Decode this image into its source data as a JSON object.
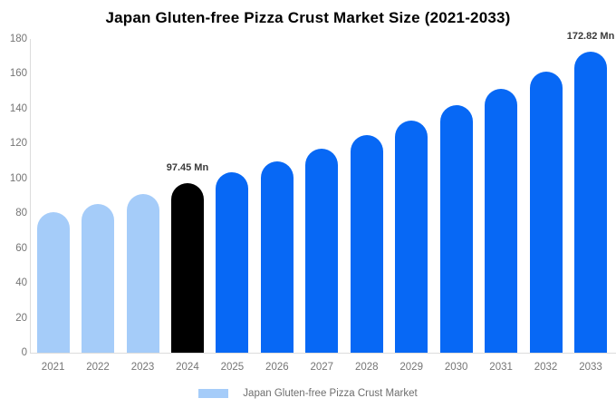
{
  "chart_data": {
    "type": "bar",
    "title": "Japan Gluten-free Pizza Crust Market Size (2021-2033)",
    "categories": [
      "2021",
      "2022",
      "2023",
      "2024",
      "2025",
      "2026",
      "2027",
      "2028",
      "2029",
      "2030",
      "2031",
      "2032",
      "2033"
    ],
    "values": [
      80.4,
      85.5,
      90.8,
      97.45,
      103.5,
      109.8,
      117.0,
      124.6,
      133.0,
      141.8,
      151.2,
      161.2,
      172.82
    ],
    "point_labels": [
      null,
      null,
      null,
      "97.45 Mn",
      null,
      null,
      null,
      null,
      null,
      null,
      null,
      null,
      "172.82 Mn"
    ],
    "bar_roles": [
      "historical",
      "historical",
      "historical",
      "highlight",
      "forecast",
      "forecast",
      "forecast",
      "forecast",
      "forecast",
      "forecast",
      "forecast",
      "forecast",
      "forecast"
    ],
    "xlabel": "",
    "ylabel": "",
    "ylim": [
      0,
      180
    ],
    "yticks": [
      0,
      20,
      40,
      60,
      80,
      100,
      120,
      140,
      160,
      180
    ],
    "grid": false,
    "legend": {
      "position": "bottom",
      "label": "Japan Gluten-free Pizza Crust Market",
      "swatch_color": "#A5CCF9"
    },
    "colors": {
      "historical": "#A5CCF9",
      "highlight": "#000000",
      "forecast": "#0768F5",
      "axis_line": "#DCDCDC",
      "tick_text": "#757575",
      "value_label_text": "#3a3a3a"
    }
  }
}
